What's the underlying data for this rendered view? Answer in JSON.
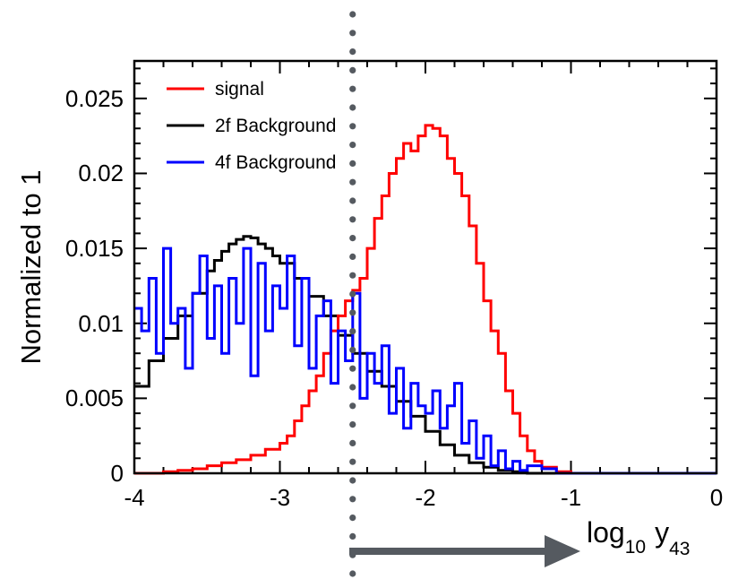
{
  "chart_data": {
    "type": "line",
    "title": "",
    "xlabel_base": "log",
    "xlabel_base_sub": "10",
    "xlabel_var": "y",
    "xlabel_var_sub": "43",
    "ylabel": "Normalized to 1",
    "xlim": [
      -4,
      0
    ],
    "ylim": [
      0,
      0.0275
    ],
    "xticks": [
      -4,
      -3,
      -2,
      -1,
      0
    ],
    "xtick_labels": [
      "-4",
      "-3",
      "-2",
      "-1",
      "0"
    ],
    "yticks": [
      0,
      0.005,
      0.01,
      0.015,
      0.02,
      0.025
    ],
    "ytick_labels": [
      "0",
      "0.005",
      "0.01",
      "0.015",
      "0.02",
      "0.025"
    ],
    "cut_value": -2.5,
    "cut_direction": "right",
    "legend_position": "top-left",
    "colors": {
      "signal": "#ff0000",
      "bg2f": "#000000",
      "bg4f": "#0000ff",
      "cut": "#555a60"
    },
    "series": [
      {
        "name": "signal",
        "color": "#ff0000",
        "x": [
          -4.0,
          -3.9,
          -3.8,
          -3.7,
          -3.6,
          -3.5,
          -3.4,
          -3.3,
          -3.2,
          -3.1,
          -3.0,
          -2.95,
          -2.9,
          -2.85,
          -2.8,
          -2.75,
          -2.7,
          -2.65,
          -2.6,
          -2.55,
          -2.5,
          -2.45,
          -2.4,
          -2.35,
          -2.3,
          -2.25,
          -2.2,
          -2.15,
          -2.1,
          -2.05,
          -2.0,
          -1.95,
          -1.9,
          -1.85,
          -1.8,
          -1.75,
          -1.7,
          -1.65,
          -1.6,
          -1.55,
          -1.5,
          -1.45,
          -1.4,
          -1.35,
          -1.3,
          -1.25,
          -1.2,
          -1.1,
          -1.0,
          -0.5,
          0.0
        ],
        "values": [
          0.0,
          0.0,
          0.0001,
          0.0002,
          0.0003,
          0.0005,
          0.0007,
          0.0009,
          0.0012,
          0.0016,
          0.002,
          0.0025,
          0.0035,
          0.0045,
          0.0055,
          0.0065,
          0.008,
          0.0095,
          0.0105,
          0.0115,
          0.0122,
          0.013,
          0.015,
          0.017,
          0.0185,
          0.02,
          0.021,
          0.022,
          0.0215,
          0.0225,
          0.0232,
          0.023,
          0.0225,
          0.021,
          0.02,
          0.0185,
          0.0165,
          0.014,
          0.0115,
          0.0095,
          0.008,
          0.0055,
          0.004,
          0.0025,
          0.0015,
          0.0008,
          0.0004,
          0.0001,
          0.0,
          0.0,
          0.0
        ]
      },
      {
        "name": "2f Background",
        "color": "#000000",
        "x": [
          -4.0,
          -3.9,
          -3.8,
          -3.7,
          -3.6,
          -3.5,
          -3.45,
          -3.4,
          -3.35,
          -3.3,
          -3.25,
          -3.2,
          -3.15,
          -3.1,
          -3.05,
          -3.0,
          -2.9,
          -2.8,
          -2.7,
          -2.6,
          -2.5,
          -2.4,
          -2.3,
          -2.2,
          -2.1,
          -2.0,
          -1.9,
          -1.8,
          -1.7,
          -1.6,
          -1.5,
          -1.4,
          -1.3,
          -1.2,
          -1.0,
          -0.5,
          0.0
        ],
        "values": [
          0.0058,
          0.0075,
          0.009,
          0.0105,
          0.012,
          0.0135,
          0.0142,
          0.0148,
          0.0153,
          0.0156,
          0.0158,
          0.0157,
          0.0153,
          0.015,
          0.0145,
          0.014,
          0.013,
          0.0118,
          0.0105,
          0.0092,
          0.008,
          0.0068,
          0.0058,
          0.0048,
          0.0038,
          0.0028,
          0.0019,
          0.0012,
          0.0007,
          0.0004,
          0.0002,
          0.0001,
          0.0,
          0.0,
          0.0,
          0.0,
          0.0
        ]
      },
      {
        "name": "4f Background",
        "color": "#0000ff",
        "x": [
          -4.0,
          -3.95,
          -3.9,
          -3.85,
          -3.8,
          -3.75,
          -3.7,
          -3.65,
          -3.6,
          -3.55,
          -3.5,
          -3.45,
          -3.4,
          -3.35,
          -3.3,
          -3.25,
          -3.2,
          -3.15,
          -3.1,
          -3.05,
          -3.0,
          -2.95,
          -2.9,
          -2.85,
          -2.8,
          -2.75,
          -2.7,
          -2.65,
          -2.6,
          -2.55,
          -2.5,
          -2.45,
          -2.4,
          -2.35,
          -2.3,
          -2.25,
          -2.2,
          -2.15,
          -2.1,
          -2.05,
          -2.0,
          -1.95,
          -1.9,
          -1.85,
          -1.8,
          -1.75,
          -1.7,
          -1.65,
          -1.6,
          -1.55,
          -1.5,
          -1.45,
          -1.4,
          -1.35,
          -1.3,
          -1.2,
          -1.1,
          -1.0,
          -0.5,
          0.0
        ],
        "values": [
          0.011,
          0.0095,
          0.013,
          0.008,
          0.015,
          0.01,
          0.011,
          0.007,
          0.012,
          0.0145,
          0.009,
          0.0125,
          0.008,
          0.013,
          0.01,
          0.015,
          0.0065,
          0.014,
          0.0095,
          0.0125,
          0.011,
          0.0145,
          0.0085,
          0.013,
          0.007,
          0.0105,
          0.0115,
          0.006,
          0.0095,
          0.0075,
          0.012,
          0.005,
          0.008,
          0.006,
          0.0085,
          0.004,
          0.007,
          0.003,
          0.006,
          0.0045,
          0.004,
          0.0055,
          0.003,
          0.0045,
          0.006,
          0.002,
          0.0035,
          0.001,
          0.0025,
          0.0005,
          0.0015,
          0.0003,
          0.0008,
          0.0002,
          0.0005,
          0.0003,
          0.0,
          0.0,
          0.0,
          0.0
        ]
      }
    ]
  }
}
